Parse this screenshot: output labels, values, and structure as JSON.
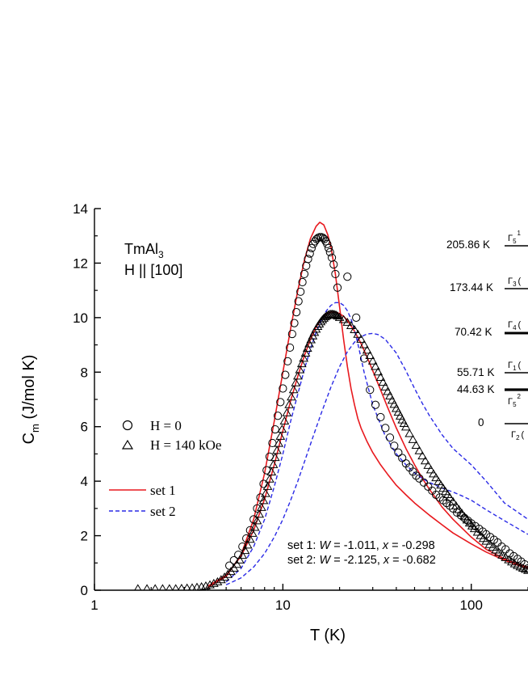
{
  "chart_data": {
    "type": "scatter",
    "x_scale": "log",
    "xlim": [
      1,
      200
    ],
    "ylim": [
      0,
      14
    ],
    "grid": false,
    "xlabel": "T (K)",
    "ylabel": {
      "main": "C",
      "sub": "m",
      "rest": " (J/mol K)"
    },
    "x_ticks": [
      {
        "value": 1,
        "label": "1"
      },
      {
        "value": 10,
        "label": "10"
      },
      {
        "value": 100,
        "label": "100"
      }
    ],
    "y_ticks": [
      0,
      2,
      4,
      6,
      8,
      10,
      12,
      14
    ],
    "y_tick_labels": [
      "0",
      "2",
      "4",
      "6",
      "8",
      "10",
      "12",
      "14"
    ],
    "sample": {
      "compound_main": "TmAl",
      "compound_sub": "3",
      "field_dir": "H || [100]"
    },
    "legend": {
      "placement": "left",
      "markers": [
        {
          "symbol": "circle",
          "label": "H = 0"
        },
        {
          "symbol": "triangle",
          "label": "H = 140 kOe"
        }
      ],
      "lines": [
        {
          "style": "solid",
          "color": "#e8191e",
          "label": "set 1"
        },
        {
          "style": "dashed",
          "color": "#2a2ae6",
          "label": "set 2"
        }
      ]
    },
    "fit_params": {
      "set1": {
        "prefix": "set 1: ",
        "w_sym": "W",
        "w_val": " = -1.011, ",
        "x_sym": "x",
        "x_val": " = -0.298"
      },
      "set2": {
        "prefix": "set 2: ",
        "w_sym": "W",
        "w_val": " = -2.125, ",
        "x_sym": "x",
        "x_val": " = -0.682"
      }
    },
    "level_scheme": [
      {
        "energy": "205.86 K",
        "label": "Γ",
        "label_sub": "5",
        "label_sup": "1"
      },
      {
        "energy": "173.44 K",
        "label": "Γ",
        "label_sub": "3",
        "label_sup": "("
      },
      {
        "energy": "70.42 K",
        "label": "Γ",
        "label_sub": "4",
        "label_sup": "("
      },
      {
        "energy": "55.71 K",
        "label": "Γ",
        "label_sub": "1",
        "label_sup": "("
      },
      {
        "energy": "44.63 K",
        "label": "Γ",
        "label_sub": "5",
        "label_sup": "2"
      },
      {
        "energy": "0",
        "label": "Γ",
        "label_sub": "2",
        "label_sup": "("
      }
    ],
    "series": [
      {
        "name": "H = 0",
        "kind": "markers",
        "marker": "circle",
        "x": [
          5.2,
          5.5,
          5.8,
          6.1,
          6.4,
          6.7,
          7.0,
          7.3,
          7.6,
          7.9,
          8.2,
          8.5,
          8.8,
          9.1,
          9.4,
          9.7,
          10.0,
          10.3,
          10.6,
          10.9,
          11.2,
          11.5,
          11.8,
          12.1,
          12.4,
          12.7,
          13.0,
          13.3,
          13.6,
          13.9,
          14.2,
          14.5,
          14.8,
          15.1,
          15.4,
          15.7,
          16.0,
          16.3,
          16.6,
          16.9,
          17.2,
          17.5,
          17.8,
          18.2,
          18.6,
          19.0,
          19.5,
          22.0,
          24.5,
          27.0,
          29.0,
          31.0,
          33.0,
          35.0,
          37.0,
          39.0,
          41.0,
          43.0,
          45.0,
          47.0,
          49.0,
          51.0,
          53.0,
          56.0,
          59.0,
          62.0,
          65.0,
          68.0,
          71.0,
          74.0,
          77.0,
          80.0,
          84.0,
          88.0,
          92.0,
          96.0,
          100.0,
          105.0,
          110.0,
          115.0,
          120.0,
          126.0,
          132.0,
          138.0,
          145.0,
          152.0,
          160.0,
          168.0,
          176.0,
          184.0,
          192.0,
          200.0
        ],
        "y": [
          0.9,
          1.1,
          1.3,
          1.6,
          1.9,
          2.2,
          2.6,
          3.0,
          3.4,
          3.9,
          4.4,
          4.9,
          5.4,
          5.9,
          6.4,
          6.9,
          7.4,
          7.9,
          8.4,
          8.9,
          9.4,
          9.8,
          10.2,
          10.6,
          10.95,
          11.3,
          11.6,
          11.9,
          12.15,
          12.35,
          12.55,
          12.7,
          12.8,
          12.88,
          12.93,
          12.95,
          12.95,
          12.93,
          12.88,
          12.8,
          12.7,
          12.55,
          12.4,
          12.2,
          11.95,
          11.6,
          11.1,
          11.5,
          10.0,
          8.5,
          7.35,
          6.8,
          6.35,
          5.95,
          5.6,
          5.3,
          5.05,
          4.85,
          4.65,
          4.5,
          4.35,
          4.2,
          4.1,
          3.95,
          3.8,
          3.65,
          3.5,
          3.4,
          3.3,
          3.2,
          3.1,
          3.0,
          2.85,
          2.75,
          2.65,
          2.55,
          2.45,
          2.35,
          2.25,
          2.15,
          2.05,
          1.95,
          1.85,
          1.75,
          1.6,
          1.5,
          1.35,
          1.25,
          1.15,
          1.05,
          0.95,
          0.8
        ]
      },
      {
        "name": "H = 140 kOe",
        "kind": "markers",
        "marker": "triangle",
        "x": [
          1.7,
          1.9,
          2.1,
          2.3,
          2.5,
          2.7,
          2.9,
          3.1,
          3.3,
          3.5,
          3.7,
          3.9,
          4.1,
          4.3,
          4.5,
          4.7,
          4.9,
          5.1,
          5.3,
          5.5,
          5.7,
          5.9,
          6.1,
          6.3,
          6.5,
          6.7,
          6.9,
          7.1,
          7.3,
          7.5,
          7.7,
          7.9,
          8.1,
          8.3,
          8.5,
          8.7,
          8.9,
          9.1,
          9.3,
          9.5,
          9.7,
          9.9,
          10.2,
          10.5,
          10.8,
          11.1,
          11.4,
          11.7,
          12.0,
          12.3,
          12.6,
          12.9,
          13.2,
          13.5,
          13.8,
          14.1,
          14.4,
          14.7,
          15.0,
          15.3,
          15.6,
          15.9,
          16.2,
          16.5,
          16.8,
          17.1,
          17.4,
          17.7,
          18.0,
          18.3,
          18.6,
          18.9,
          19.2,
          19.5,
          20.0,
          21.0,
          22.0,
          23.0,
          24.0,
          25.0,
          26.0,
          27.0,
          28.0,
          29.0,
          30.0,
          31.0,
          32.0,
          33.0,
          34.0,
          35.0,
          36.0,
          37.0,
          38.0,
          39.0,
          40.0,
          41.0,
          42.0,
          43.0,
          44.0,
          45.0,
          47.0,
          49.0,
          51.0,
          53.0,
          55.0,
          57.0,
          59.0,
          61.0,
          63.0,
          65.0,
          67.0,
          69.0,
          71.0,
          73.0,
          75.0,
          77.0,
          80.0,
          83.0,
          86.0,
          89.0,
          92.0,
          95.0,
          98.0,
          101.0,
          104.0,
          108.0,
          112.0,
          116.0,
          120.0,
          125.0,
          130.0,
          135.0,
          140.0,
          146.0,
          152.0,
          158.0,
          164.0,
          170.0,
          176.0,
          182.0,
          188.0,
          194.0,
          200.0
        ],
        "y": [
          0.05,
          0.05,
          0.05,
          0.05,
          0.05,
          0.05,
          0.06,
          0.07,
          0.08,
          0.1,
          0.12,
          0.15,
          0.19,
          0.24,
          0.3,
          0.38,
          0.47,
          0.57,
          0.68,
          0.8,
          0.94,
          1.1,
          1.27,
          1.45,
          1.65,
          1.86,
          2.08,
          2.3,
          2.54,
          2.78,
          3.03,
          3.28,
          3.54,
          3.8,
          4.07,
          4.33,
          4.6,
          4.86,
          5.12,
          5.38,
          5.64,
          5.9,
          6.2,
          6.5,
          6.8,
          7.08,
          7.35,
          7.6,
          7.85,
          8.08,
          8.3,
          8.5,
          8.69,
          8.87,
          9.03,
          9.18,
          9.32,
          9.45,
          9.57,
          9.67,
          9.76,
          9.84,
          9.91,
          9.97,
          10.02,
          10.06,
          10.09,
          10.11,
          10.12,
          10.12,
          10.11,
          10.1,
          10.08,
          10.05,
          10.0,
          9.92,
          9.82,
          9.7,
          9.55,
          9.38,
          9.2,
          9.0,
          8.8,
          8.6,
          8.4,
          8.2,
          8.0,
          7.8,
          7.62,
          7.45,
          7.28,
          7.12,
          6.96,
          6.81,
          6.66,
          6.52,
          6.38,
          6.24,
          6.11,
          5.98,
          5.74,
          5.52,
          5.31,
          5.11,
          4.92,
          4.74,
          4.57,
          4.41,
          4.26,
          4.12,
          3.98,
          3.85,
          3.73,
          3.61,
          3.5,
          3.39,
          3.24,
          3.09,
          2.95,
          2.82,
          2.69,
          2.57,
          2.46,
          2.35,
          2.25,
          2.12,
          2.0,
          1.89,
          1.79,
          1.67,
          1.57,
          1.47,
          1.38,
          1.28,
          1.19,
          1.11,
          1.03,
          0.96,
          0.9,
          0.85,
          0.8,
          0.76,
          0.72
        ]
      },
      {
        "name": "set 1",
        "kind": "line",
        "style": "solid",
        "color": "#e8191e",
        "x": [
          4.0,
          5.0,
          6.0,
          7.0,
          8.0,
          9.0,
          10.0,
          11.0,
          12.0,
          13.0,
          14.0,
          15.0,
          15.7,
          16.5,
          17.3,
          18.0,
          19.0,
          20.0,
          21.0,
          22.0,
          23.0,
          24.0,
          25.0,
          26.0,
          28.0,
          30.0,
          33.0,
          36.0,
          40.0,
          45.0,
          50.0,
          60.0,
          70.0,
          80.0,
          100.0,
          120.0,
          150.0,
          180.0,
          200.0
        ],
        "y": [
          0.1,
          0.5,
          1.3,
          2.6,
          4.3,
          6.2,
          8.0,
          9.6,
          11.0,
          12.1,
          12.9,
          13.35,
          13.5,
          13.4,
          13.05,
          12.6,
          11.6,
          10.4,
          9.2,
          8.2,
          7.4,
          6.8,
          6.3,
          5.95,
          5.45,
          5.05,
          4.6,
          4.25,
          3.85,
          3.5,
          3.2,
          2.75,
          2.4,
          2.1,
          1.7,
          1.4,
          1.1,
          0.9,
          0.8
        ]
      },
      {
        "name": "set 1 (140 kOe)",
        "kind": "line",
        "style": "solid",
        "color": "#e8191e",
        "x": [
          4.0,
          5.0,
          6.0,
          7.0,
          8.0,
          9.0,
          10.0,
          11.0,
          12.0,
          13.0,
          14.0,
          15.0,
          16.0,
          17.0,
          18.0,
          19.0,
          20.0,
          21.0,
          22.0,
          24.0,
          26.0,
          28.0,
          30.0,
          33.0,
          36.0,
          40.0,
          45.0,
          50.0,
          55.0,
          60.0,
          70.0,
          80.0,
          100.0,
          120.0,
          150.0,
          180.0,
          200.0
        ],
        "y": [
          0.15,
          0.55,
          1.25,
          2.2,
          3.35,
          4.6,
          5.85,
          6.95,
          7.85,
          8.6,
          9.2,
          9.65,
          9.95,
          10.12,
          10.2,
          10.2,
          10.15,
          10.05,
          9.9,
          9.5,
          9.05,
          8.55,
          8.05,
          7.35,
          6.7,
          5.95,
          5.2,
          4.6,
          4.1,
          3.7,
          3.05,
          2.6,
          1.95,
          1.5,
          1.15,
          0.95,
          0.85
        ]
      },
      {
        "name": "set 2",
        "kind": "line",
        "style": "dashed",
        "color": "#2a2ae6",
        "x": [
          5.0,
          6.0,
          7.0,
          8.0,
          9.0,
          10.0,
          11.0,
          12.0,
          13.0,
          14.0,
          15.0,
          16.0,
          17.0,
          18.0,
          19.0,
          20.0,
          21.0,
          22.0,
          23.0,
          24.0,
          25.0,
          27.0,
          30.0,
          35.0,
          40.0,
          45.0,
          50.0,
          55.0,
          60.0,
          70.0,
          80.0,
          90.0,
          100.0,
          120.0,
          150.0,
          200.0
        ],
        "y": [
          0.3,
          0.8,
          1.6,
          2.6,
          3.8,
          5.0,
          6.2,
          7.2,
          8.1,
          8.85,
          9.45,
          9.9,
          10.25,
          10.45,
          10.55,
          10.55,
          10.45,
          10.25,
          9.95,
          9.55,
          9.05,
          8.0,
          6.8,
          5.65,
          5.0,
          4.6,
          4.3,
          4.1,
          3.95,
          3.75,
          3.6,
          3.45,
          3.3,
          2.95,
          2.55,
          2.05
        ]
      },
      {
        "name": "set 2 (140 kOe)",
        "kind": "line",
        "style": "dashed",
        "color": "#2a2ae6",
        "x": [
          5.0,
          6.0,
          7.0,
          8.0,
          9.0,
          10.0,
          11.0,
          12.0,
          13.0,
          14.0,
          15.0,
          16.0,
          18.0,
          20.0,
          22.0,
          24.0,
          26.0,
          28.0,
          30.0,
          32.0,
          35.0,
          40.0,
          45.0,
          50.0,
          55.0,
          60.0,
          70.0,
          80.0,
          100.0,
          120.0,
          150.0,
          200.0
        ],
        "y": [
          0.2,
          0.45,
          0.85,
          1.35,
          1.95,
          2.6,
          3.3,
          4.0,
          4.7,
          5.35,
          5.95,
          6.5,
          7.45,
          8.2,
          8.75,
          9.1,
          9.3,
          9.4,
          9.42,
          9.38,
          9.2,
          8.7,
          8.05,
          7.4,
          6.85,
          6.4,
          5.7,
          5.2,
          4.6,
          4.0,
          3.2,
          2.6
        ]
      }
    ]
  }
}
